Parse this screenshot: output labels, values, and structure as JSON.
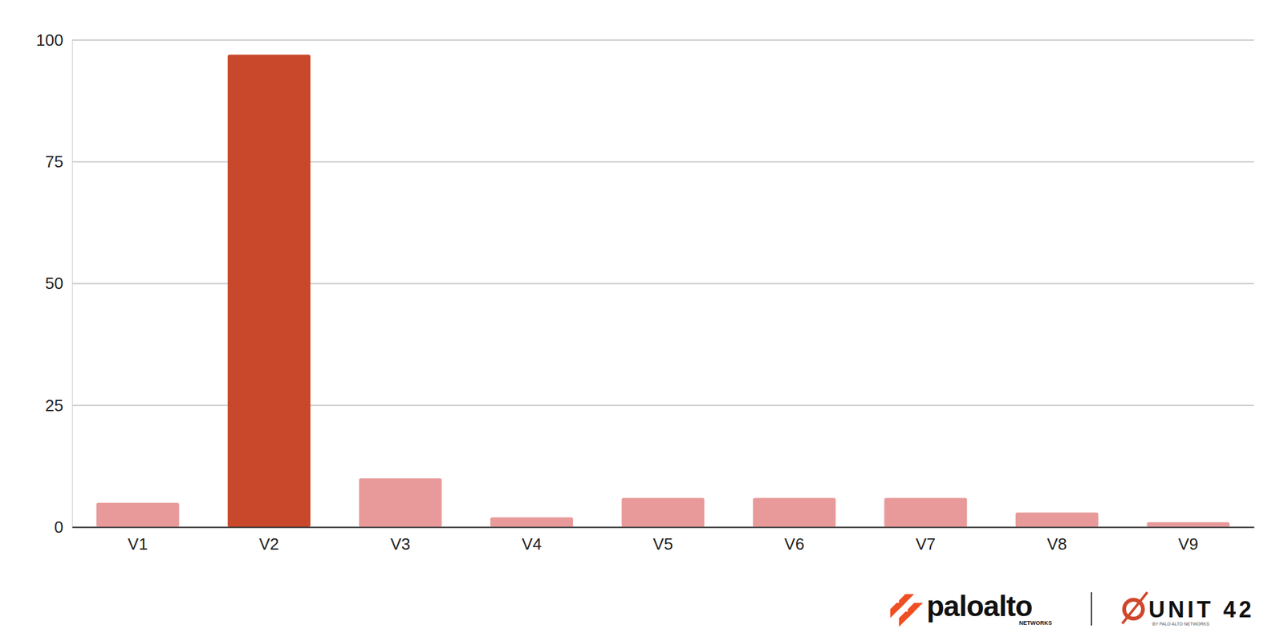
{
  "chart_data": {
    "type": "bar",
    "categories": [
      "V1",
      "V2",
      "V3",
      "V4",
      "V5",
      "V6",
      "V7",
      "V8",
      "V9"
    ],
    "values": [
      5,
      97,
      10,
      2,
      6,
      6,
      6,
      3,
      1
    ],
    "colors": [
      "#e89a9a",
      "#c9472a",
      "#e89a9a",
      "#e89a9a",
      "#e89a9a",
      "#e89a9a",
      "#e89a9a",
      "#e89a9a",
      "#e89a9a"
    ],
    "ylim": [
      0,
      100
    ],
    "yticks": [
      0,
      25,
      50,
      75,
      100
    ],
    "grid": true,
    "annotations": [
      "paloalto",
      "NETWORKS",
      "UNIT 42",
      "BY PALO ALTO NETWORKS"
    ]
  }
}
